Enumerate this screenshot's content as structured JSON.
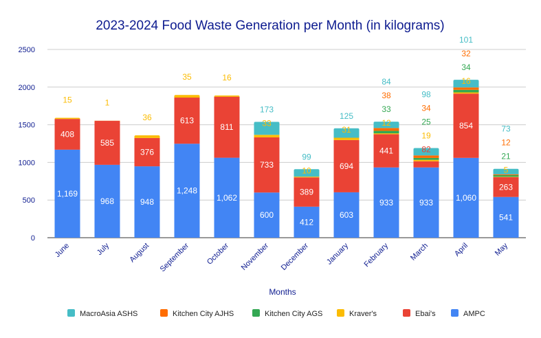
{
  "chart_data": {
    "type": "bar",
    "stacked": true,
    "title": "2023-2024 Food Waste Generation per Month (in kilograms)",
    "xlabel": "Months",
    "ylabel": "",
    "ylim": [
      0,
      2500
    ],
    "yticks": [
      0,
      500,
      1000,
      1500,
      2000,
      2500
    ],
    "grid": true,
    "legend_position": "bottom",
    "categories": [
      "June",
      "July",
      "August",
      "September",
      "October",
      "November",
      "December",
      "January",
      "February",
      "March",
      "April",
      "May"
    ],
    "series": [
      {
        "name": "AMPC",
        "color": "#4285f4",
        "values": [
          1169,
          968,
          948,
          1248,
          1062,
          600,
          412,
          603,
          933,
          933,
          1060,
          541
        ]
      },
      {
        "name": "Ebai's",
        "color": "#ea4335",
        "values": [
          408,
          585,
          376,
          613,
          811,
          733,
          389,
          694,
          441,
          82,
          854,
          263
        ]
      },
      {
        "name": "Kraver's",
        "color": "#fbbc04",
        "values": [
          15,
          1,
          36,
          35,
          16,
          33,
          10,
          31,
          12,
          19,
          16,
          5
        ]
      },
      {
        "name": "Kitchen City AGS",
        "color": "#34a853",
        "values": [
          null,
          null,
          null,
          null,
          null,
          null,
          null,
          null,
          33,
          25,
          34,
          21
        ]
      },
      {
        "name": "Kitchen City AJHS",
        "color": "#ff6d01",
        "values": [
          null,
          null,
          null,
          null,
          null,
          null,
          null,
          null,
          38,
          34,
          32,
          12
        ]
      },
      {
        "name": "MacroAsia ASHS",
        "color": "#46bdc6",
        "values": [
          null,
          null,
          null,
          null,
          null,
          173,
          99,
          125,
          84,
          98,
          101,
          73
        ]
      }
    ],
    "legend_order": [
      "MacroAsia ASHS",
      "Kitchen City AJHS",
      "Kitchen City AGS",
      "Kraver's",
      "Ebai's",
      "AMPC"
    ]
  }
}
